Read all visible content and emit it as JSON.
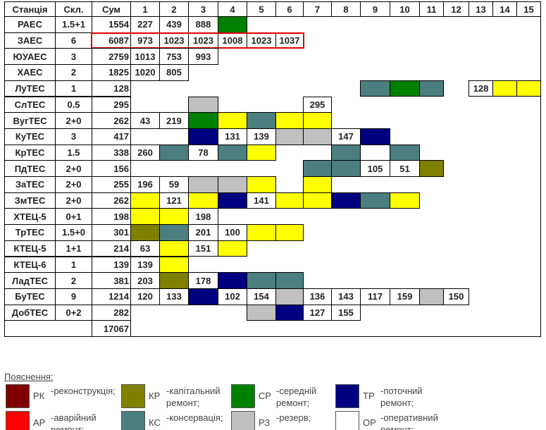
{
  "table": {
    "header": [
      "Станція",
      "Скл.",
      "Сум",
      "1",
      "2",
      "3",
      "4",
      "5",
      "6",
      "7",
      "8",
      "9",
      "10",
      "11",
      "12",
      "13",
      "14",
      "15"
    ],
    "rows": [
      {
        "station": "РАЕС",
        "units": "1.5+1",
        "sum": 1554,
        "cells": [
          {
            "v": 227
          },
          {
            "v": 439
          },
          {
            "v": 888
          },
          {
            "c": "#008000"
          },
          null,
          null,
          null,
          null,
          null,
          null,
          null,
          null,
          null,
          null,
          null
        ]
      },
      {
        "station": "ЗАЕС",
        "units": "6",
        "sum": 6087,
        "highlighted": true,
        "cells": [
          {
            "v": 973
          },
          {
            "v": 1023
          },
          {
            "v": 1023
          },
          {
            "v": 1008
          },
          {
            "v": 1023
          },
          {
            "v": 1037
          },
          null,
          null,
          null,
          null,
          null,
          null,
          null,
          null,
          null
        ]
      },
      {
        "station": "ЮУАЕС",
        "units": "3",
        "sum": 2759,
        "cells": [
          {
            "v": 1013
          },
          {
            "v": 753
          },
          {
            "v": 993
          },
          null,
          null,
          null,
          null,
          null,
          null,
          null,
          null,
          null,
          null,
          null,
          null
        ]
      },
      {
        "station": "ХАЕС",
        "units": "2",
        "sum": 1825,
        "cells": [
          {
            "v": 1020
          },
          {
            "v": 805
          },
          null,
          null,
          null,
          null,
          null,
          null,
          null,
          null,
          null,
          null,
          null,
          null,
          null
        ]
      },
      {
        "station": "ЛуТЕС",
        "units": "1",
        "sum": 128,
        "cells": [
          null,
          null,
          null,
          null,
          null,
          null,
          null,
          null,
          {
            "c": "#4b7f7f"
          },
          {
            "c": "#008000"
          },
          {
            "c": "#4b7f7f"
          },
          null,
          {
            "v": 128
          },
          {
            "c": "#ffff00"
          },
          {
            "c": "#ffff00"
          }
        ]
      },
      {
        "station": "СлТЕС",
        "units": "0.5",
        "sum": 295,
        "cells": [
          null,
          null,
          {
            "c": "#c0c0c0"
          },
          null,
          null,
          null,
          {
            "v": 295
          },
          null,
          null,
          null,
          null,
          null,
          null,
          null,
          null
        ]
      },
      {
        "station": "ВугТЕС",
        "units": "2+0",
        "sum": 262,
        "cells": [
          {
            "v": 43
          },
          {
            "v": 219
          },
          {
            "c": "#008000"
          },
          {
            "c": "#ffff00"
          },
          {
            "c": "#4b7f7f"
          },
          {
            "c": "#ffff00"
          },
          {
            "c": "#ffff00"
          },
          null,
          null,
          null,
          null,
          null,
          null,
          null,
          null
        ]
      },
      {
        "station": "КуТЕС",
        "units": "3",
        "sum": 417,
        "cells": [
          null,
          null,
          {
            "c": "#000080"
          },
          {
            "v": 131
          },
          {
            "v": 139
          },
          {
            "c": "#c0c0c0"
          },
          {
            "c": "#c0c0c0"
          },
          {
            "v": 147
          },
          {
            "c": "#000080"
          },
          null,
          null,
          null,
          null,
          null,
          null
        ]
      },
      {
        "station": "КрТЕС",
        "units": "1.5",
        "sum": 338,
        "cells": [
          {
            "v": 260
          },
          {
            "c": "#4b7f7f"
          },
          {
            "v": 78
          },
          {
            "c": "#4b7f7f"
          },
          {
            "c": "#ffff00"
          },
          null,
          null,
          {
            "c": "#4b7f7f"
          },
          null,
          {
            "c": "#4b7f7f"
          },
          null,
          null,
          null,
          null,
          null
        ]
      },
      {
        "station": "ПдТЕС",
        "units": "2+0",
        "sum": 156,
        "cells": [
          null,
          null,
          null,
          null,
          null,
          null,
          {
            "c": "#4b7f7f"
          },
          {
            "c": "#4b7f7f"
          },
          {
            "v": 105
          },
          {
            "v": 51
          },
          {
            "c": "#808000"
          },
          null,
          null,
          null,
          null
        ]
      },
      {
        "station": "ЗаТЕС",
        "units": "2+0",
        "sum": 255,
        "cells": [
          {
            "v": 196
          },
          {
            "v": 59
          },
          {
            "c": "#c0c0c0"
          },
          {
            "c": "#c0c0c0"
          },
          {
            "c": "#ffff00"
          },
          null,
          {
            "c": "#ffff00"
          },
          null,
          null,
          null,
          null,
          null,
          null,
          null,
          null
        ]
      },
      {
        "station": "ЗмТЕС",
        "units": "2+0",
        "sum": 262,
        "cells": [
          {
            "c": "#ffff00"
          },
          {
            "v": 121
          },
          {
            "c": "#ffff00"
          },
          {
            "c": "#000080"
          },
          {
            "v": 141
          },
          {
            "c": "#ffff00"
          },
          {
            "c": "#ffff00"
          },
          {
            "c": "#000080"
          },
          {
            "c": "#4b7f7f"
          },
          {
            "c": "#ffff00"
          },
          null,
          null,
          null,
          null,
          null
        ]
      },
      {
        "station": "ХТЕЦ-5",
        "units": "0+1",
        "sum": 198,
        "cells": [
          {
            "c": "#ffff00"
          },
          {
            "c": "#ffff00"
          },
          {
            "v": 198
          },
          null,
          null,
          null,
          null,
          null,
          null,
          null,
          null,
          null,
          null,
          null,
          null
        ]
      },
      {
        "station": "ТрТЕС",
        "units": "1.5+0",
        "sum": 301,
        "cells": [
          {
            "c": "#808000"
          },
          {
            "c": "#4b7f7f"
          },
          {
            "v": 201
          },
          {
            "v": 100
          },
          {
            "c": "#ffff00"
          },
          {
            "c": "#ffff00"
          },
          null,
          null,
          null,
          null,
          null,
          null,
          null,
          null,
          null
        ]
      },
      {
        "station": "КТЕЦ-5",
        "units": "1+1",
        "sum": 214,
        "cells": [
          {
            "v": 63
          },
          {
            "c": "#ffff00"
          },
          {
            "v": 151
          },
          {
            "c": "#ffff00"
          },
          null,
          null,
          null,
          null,
          null,
          null,
          null,
          null,
          null,
          null,
          null
        ]
      },
      {
        "station": "КТЕЦ-6",
        "units": "1",
        "sum": 139,
        "cells": [
          {
            "v": 139
          },
          {
            "c": "#ffff00"
          },
          null,
          null,
          null,
          null,
          null,
          null,
          null,
          null,
          null,
          null,
          null,
          null,
          null
        ]
      },
      {
        "station": "ЛадТЕС",
        "units": "2",
        "sum": 381,
        "cells": [
          {
            "v": 203
          },
          {
            "c": "#808000"
          },
          {
            "v": 178
          },
          {
            "c": "#000080"
          },
          {
            "c": "#4b7f7f"
          },
          {
            "c": "#4b7f7f"
          },
          null,
          null,
          null,
          null,
          null,
          null,
          null,
          null,
          null
        ]
      },
      {
        "station": "БуТЕС",
        "units": "9",
        "sum": 1214,
        "cells": [
          {
            "v": 120
          },
          {
            "v": 133
          },
          {
            "c": "#000080"
          },
          {
            "v": 102
          },
          {
            "v": 154
          },
          {
            "c": "#c0c0c0"
          },
          {
            "v": 136
          },
          {
            "v": 143
          },
          {
            "v": 117
          },
          {
            "v": 159
          },
          {
            "c": "#c0c0c0"
          },
          {
            "v": 150
          },
          null,
          null,
          null
        ]
      },
      {
        "station": "ДобТЕС",
        "units": "0+2",
        "sum": 282,
        "cells": [
          null,
          null,
          null,
          null,
          {
            "c": "#c0c0c0"
          },
          {
            "c": "#000080"
          },
          {
            "v": 127
          },
          {
            "v": 155
          },
          null,
          null,
          null,
          null,
          null,
          null,
          null
        ]
      }
    ],
    "total": 17067
  },
  "legend": {
    "title": "Пояснення:",
    "items": [
      {
        "code": "РК",
        "text": "-реконструкція;",
        "color": "#800000"
      },
      {
        "code": "КР",
        "text": "-капітальний ремонт;",
        "color": "#808000"
      },
      {
        "code": "СР",
        "text": "-середній ремонт;",
        "color": "#008000"
      },
      {
        "code": "ТР",
        "text": "-поточний ремонт;",
        "color": "#000080"
      },
      {
        "code": "АР",
        "text": "-аварійний ремонт;",
        "color": "#ff0000"
      },
      {
        "code": "КС",
        "text": "-консервація;",
        "color": "#4b7f7f"
      },
      {
        "code": "РЗ",
        "text": "-резерв;",
        "color": "#c0c0c0"
      },
      {
        "code": "ОР",
        "text": "-оперативний ремонт;",
        "color": "#ffffff"
      }
    ]
  }
}
